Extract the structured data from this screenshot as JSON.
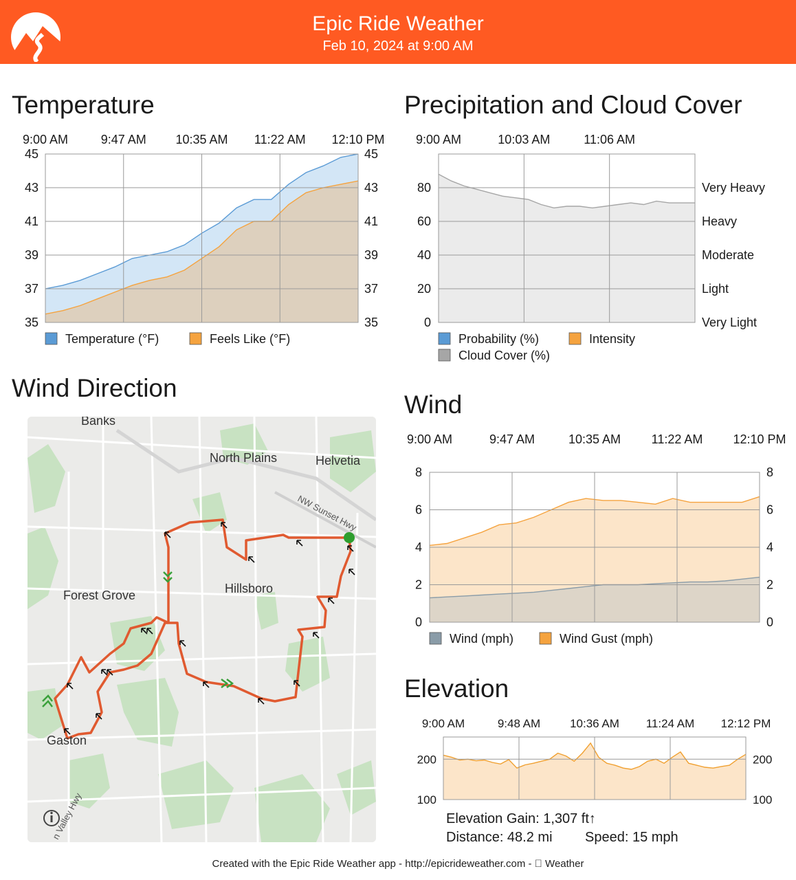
{
  "header": {
    "title": "Epic Ride Weather",
    "subtitle": "Feb 10, 2024 at 9:00 AM",
    "accent": "#FF5A22"
  },
  "sections": {
    "temperature": "Temperature",
    "precipitation": "Precipitation and Cloud Cover",
    "wind_direction": "Wind Direction",
    "wind": "Wind",
    "elevation": "Elevation"
  },
  "chart_data": [
    {
      "id": "temperature",
      "type": "area",
      "x_ticks": [
        "9:00 AM",
        "9:47 AM",
        "10:35 AM",
        "11:22 AM",
        "12:10 PM"
      ],
      "ylim": [
        35,
        45
      ],
      "y_ticks": [
        "35",
        "37",
        "39",
        "41",
        "43",
        "45"
      ],
      "y_ticks_right": [
        "35",
        "37",
        "39",
        "41",
        "43",
        "45"
      ],
      "grid": true,
      "series": [
        {
          "name": "Temperature (°F)",
          "color": "#5B9BD5",
          "fill": "#D3E6F6",
          "values": [
            37.0,
            37.2,
            37.5,
            37.9,
            38.3,
            38.8,
            39.0,
            39.2,
            39.6,
            40.3,
            40.9,
            41.8,
            42.3,
            42.3,
            43.2,
            43.9,
            44.3,
            44.8,
            45.0
          ]
        },
        {
          "name": "Feels Like (°F)",
          "color": "#F5A33F",
          "fill": "#DDD0BE",
          "values": [
            35.5,
            35.7,
            36.0,
            36.4,
            36.8,
            37.2,
            37.5,
            37.7,
            38.1,
            38.8,
            39.5,
            40.5,
            41.0,
            41.0,
            42.0,
            42.7,
            43.0,
            43.2,
            43.4
          ]
        }
      ],
      "legend": [
        "Temperature (°F)",
        "Feels Like (°F)"
      ]
    },
    {
      "id": "precipitation",
      "type": "area",
      "x_ticks": [
        "9:00 AM",
        "10:03 AM",
        "11:06 AM"
      ],
      "ylim": [
        0,
        100
      ],
      "y_ticks": [
        "0",
        "20",
        "40",
        "60",
        "80"
      ],
      "y_ticks_right": [
        "Very Light",
        "Light",
        "Moderate",
        "Heavy",
        "Very Heavy"
      ],
      "grid": true,
      "series": [
        {
          "name": "Cloud Cover (%)",
          "color": "#A6A6A6",
          "fill": "#EBEBEB",
          "values": [
            88,
            84,
            81,
            79,
            77,
            75,
            74,
            73,
            70,
            68,
            69,
            69,
            68,
            69,
            70,
            71,
            70,
            72,
            71,
            71,
            71
          ]
        },
        {
          "name": "Probability (%)",
          "color": "#5B9BD5",
          "values": []
        },
        {
          "name": "Intensity",
          "color": "#F5A33F",
          "values": []
        }
      ],
      "legend": [
        "Probability (%)",
        "Intensity",
        "Cloud Cover (%)"
      ]
    },
    {
      "id": "wind",
      "type": "area",
      "x_ticks": [
        "9:00 AM",
        "9:47 AM",
        "10:35 AM",
        "11:22 AM",
        "12:10 PM"
      ],
      "ylim": [
        0,
        8
      ],
      "y_ticks": [
        "0",
        "2",
        "4",
        "6",
        "8"
      ],
      "y_ticks_right": [
        "0",
        "2",
        "4",
        "6",
        "8"
      ],
      "grid": true,
      "series": [
        {
          "name": "Wind Gust (mph)",
          "color": "#F5A33F",
          "fill": "#FCE5C9",
          "values": [
            4.1,
            4.2,
            4.5,
            4.8,
            5.2,
            5.3,
            5.6,
            6.0,
            6.4,
            6.6,
            6.5,
            6.5,
            6.4,
            6.3,
            6.6,
            6.4,
            6.4,
            6.4,
            6.4,
            6.7
          ]
        },
        {
          "name": "Wind (mph)",
          "color": "#8A9CA8",
          "fill": "#DDD5C8",
          "values": [
            1.3,
            1.35,
            1.4,
            1.45,
            1.5,
            1.55,
            1.6,
            1.7,
            1.8,
            1.9,
            2.0,
            2.0,
            2.0,
            2.05,
            2.1,
            2.15,
            2.15,
            2.2,
            2.3,
            2.4
          ]
        }
      ],
      "legend": [
        "Wind (mph)",
        "Wind Gust (mph)"
      ]
    },
    {
      "id": "elevation",
      "type": "area",
      "x_ticks": [
        "9:00 AM",
        "9:48 AM",
        "10:36 AM",
        "11:24 AM",
        "12:12 PM"
      ],
      "ylim": [
        100,
        255
      ],
      "y_ticks": [
        "100",
        "200"
      ],
      "y_ticks_right": [
        "100",
        "200"
      ],
      "grid": true,
      "series": [
        {
          "name": "Elevation",
          "color": "#F0A030",
          "fill": "#FCE5C9",
          "values": [
            210,
            205,
            198,
            200,
            196,
            198,
            192,
            188,
            199,
            178,
            186,
            190,
            195,
            200,
            215,
            208,
            195,
            215,
            240,
            205,
            190,
            185,
            178,
            175,
            182,
            195,
            200,
            190,
            205,
            218,
            190,
            185,
            180,
            178,
            182,
            185,
            200,
            212
          ]
        }
      ]
    }
  ],
  "map": {
    "places": [
      "Banks",
      "North Plains",
      "Helvetia",
      "NW Sunset Hwy",
      "Forest Grove",
      "Hillsboro",
      "Gaston",
      "n Valley Hwy"
    ],
    "route_color": "#E05A30",
    "start_color": "#2E9E2E"
  },
  "stats": {
    "elevation_gain": "Elevation Gain: 1,307 ft↑",
    "distance": "Distance: 48.2 mi",
    "speed": "Speed: 15 mph"
  },
  "footer": "Created with the Epic Ride Weather app - http://epicrideweather.com -  Weather"
}
